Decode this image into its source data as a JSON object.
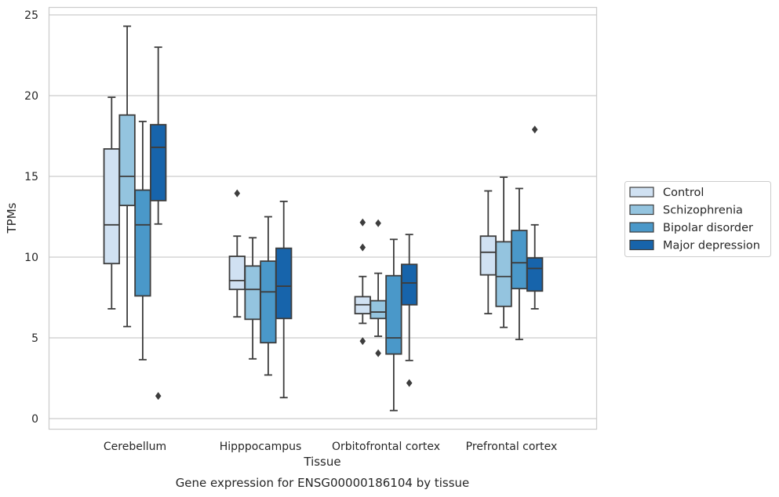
{
  "chart_data": {
    "type": "box",
    "title": "",
    "caption": "Gene expression for ENSG00000186104 by tissue",
    "xlabel": "Tissue",
    "ylabel": "TPMs",
    "ylim": [
      -0.5,
      25.5
    ],
    "yticks": [
      0,
      5,
      10,
      15,
      20,
      25
    ],
    "grid": "horizontal",
    "legend_position": "right",
    "categories": [
      "Cerebellum",
      "Hipppocampus",
      "Orbitofrontal cortex",
      "Prefrontal cortex"
    ],
    "series": [
      {
        "name": "Control",
        "color": "#d0e1f2",
        "boxes": [
          {
            "whislo": 6.8,
            "q1": 9.6,
            "med": 12.0,
            "q3": 16.7,
            "whishi": 19.9,
            "fliers": []
          },
          {
            "whislo": 6.3,
            "q1": 8.0,
            "med": 8.55,
            "q3": 10.05,
            "whishi": 11.3,
            "fliers": [
              13.95
            ]
          },
          {
            "whislo": 5.9,
            "q1": 6.5,
            "med": 7.05,
            "q3": 7.55,
            "whishi": 8.8,
            "fliers": [
              12.15,
              10.6,
              4.8
            ]
          },
          {
            "whislo": 6.5,
            "q1": 8.9,
            "med": 10.3,
            "q3": 11.3,
            "whishi": 14.1,
            "fliers": []
          }
        ]
      },
      {
        "name": "Schizophrenia",
        "color": "#94c4df",
        "boxes": [
          {
            "whislo": 5.7,
            "q1": 13.2,
            "med": 15.0,
            "q3": 18.8,
            "whishi": 24.3,
            "fliers": []
          },
          {
            "whislo": 3.7,
            "q1": 6.15,
            "med": 8.0,
            "q3": 9.45,
            "whishi": 11.2,
            "fliers": []
          },
          {
            "whislo": 5.1,
            "q1": 6.2,
            "med": 6.6,
            "q3": 7.3,
            "whishi": 9.0,
            "fliers": [
              12.1,
              4.05
            ]
          },
          {
            "whislo": 5.65,
            "q1": 6.95,
            "med": 8.8,
            "q3": 10.95,
            "whishi": 14.95,
            "fliers": []
          }
        ]
      },
      {
        "name": "Bipolar disorder",
        "color": "#4a98c9",
        "boxes": [
          {
            "whislo": 3.65,
            "q1": 7.6,
            "med": 12.0,
            "q3": 14.15,
            "whishi": 18.4,
            "fliers": []
          },
          {
            "whislo": 2.7,
            "q1": 4.7,
            "med": 7.85,
            "q3": 9.75,
            "whishi": 12.5,
            "fliers": []
          },
          {
            "whislo": 0.5,
            "q1": 4.0,
            "med": 5.0,
            "q3": 8.85,
            "whishi": 11.1,
            "fliers": []
          },
          {
            "whislo": 4.9,
            "q1": 8.05,
            "med": 9.65,
            "q3": 11.65,
            "whishi": 14.25,
            "fliers": []
          }
        ]
      },
      {
        "name": "Major depression",
        "color": "#1764ab",
        "boxes": [
          {
            "whislo": 12.05,
            "q1": 13.5,
            "med": 16.8,
            "q3": 18.2,
            "whishi": 23.0,
            "fliers": [
              1.4
            ]
          },
          {
            "whislo": 1.3,
            "q1": 6.2,
            "med": 8.2,
            "q3": 10.55,
            "whishi": 13.45,
            "fliers": []
          },
          {
            "whislo": 3.6,
            "q1": 7.05,
            "med": 8.4,
            "q3": 9.55,
            "whishi": 11.4,
            "fliers": [
              2.2
            ]
          },
          {
            "whislo": 6.8,
            "q1": 7.9,
            "med": 9.3,
            "q3": 9.95,
            "whishi": 12.0,
            "fliers": [
              17.9
            ]
          }
        ]
      }
    ]
  }
}
